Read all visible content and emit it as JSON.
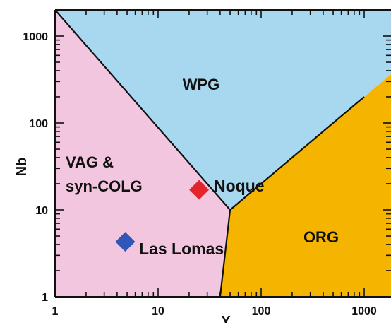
{
  "chart_data": {
    "type": "scatter",
    "xlabel": "Y",
    "ylabel": "Nb",
    "xscale": "log",
    "yscale": "log",
    "xlim": [
      1,
      1000
    ],
    "ylim": [
      1,
      2000
    ],
    "xticks": [
      1,
      10,
      100,
      1000
    ],
    "xtick_labels": [
      "1",
      "10",
      "100",
      "1000"
    ],
    "yticks": [
      1,
      10,
      100,
      1000
    ],
    "ytick_labels": [
      "1",
      "10",
      "100",
      "1000"
    ],
    "regions": [
      {
        "name": "WPG",
        "color": "#a8d8f0"
      },
      {
        "name": "VAG & syn-COLG",
        "lines": [
          "VAG &",
          "syn-COLG"
        ],
        "color": "#f3c6df"
      },
      {
        "name": "ORG",
        "color": "#f4b400"
      }
    ],
    "points": [
      {
        "name": "Noque",
        "x": 25,
        "y": 17,
        "color": "#e3242b",
        "marker": "diamond"
      },
      {
        "name": "Las Lomas",
        "x": 4.8,
        "y": 4.3,
        "color": "#2f57b7",
        "marker": "diamond"
      }
    ],
    "boundaries": [
      {
        "from": [
          1,
          2000
        ],
        "to": [
          50,
          10
        ]
      },
      {
        "from": [
          50,
          10
        ],
        "to": [
          40,
          1
        ]
      },
      {
        "from": [
          50,
          10
        ],
        "to": [
          1000,
          200
        ]
      }
    ]
  }
}
